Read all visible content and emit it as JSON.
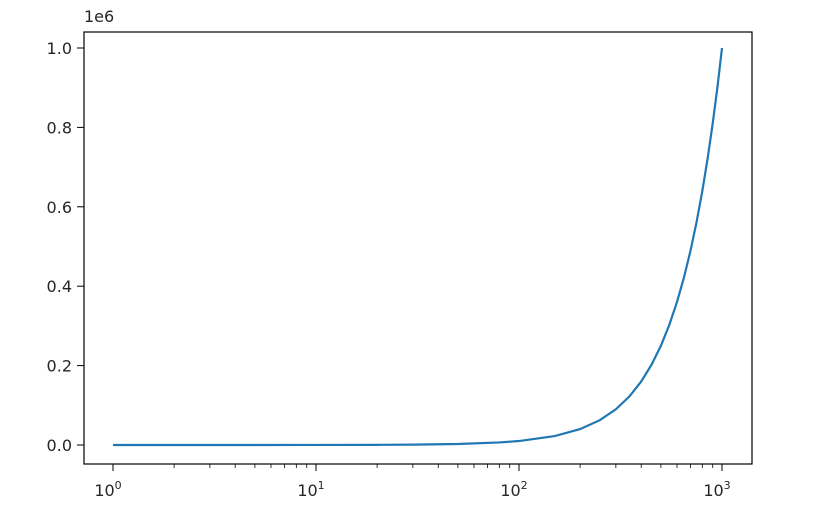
{
  "chart_data": {
    "type": "line",
    "title": "",
    "xlabel": "",
    "ylabel": "",
    "x_scale": "log",
    "x_range": [
      1,
      1000
    ],
    "y_range": [
      0,
      1000000
    ],
    "y_offset_label": "1e6",
    "x_ticks": [
      {
        "value": 1,
        "base": "10",
        "exp": "0"
      },
      {
        "value": 10,
        "base": "10",
        "exp": "1"
      },
      {
        "value": 100,
        "base": "10",
        "exp": "2"
      },
      {
        "value": 1000,
        "base": "10",
        "exp": "3"
      }
    ],
    "y_ticks": [
      {
        "value": 0,
        "label": "0.0"
      },
      {
        "value": 200000,
        "label": "0.2"
      },
      {
        "value": 400000,
        "label": "0.4"
      },
      {
        "value": 600000,
        "label": "0.6"
      },
      {
        "value": 800000,
        "label": "0.8"
      },
      {
        "value": 1000000,
        "label": "1.0"
      }
    ],
    "series": [
      {
        "color": "#1f77b4",
        "x": [
          1,
          5,
          10,
          20,
          30,
          50,
          80,
          100,
          150,
          200,
          250,
          300,
          350,
          400,
          450,
          500,
          550,
          600,
          650,
          700,
          750,
          800,
          850,
          900,
          950,
          1000
        ],
        "y": [
          1,
          25,
          100,
          400,
          900,
          2500,
          6400,
          10000,
          22500,
          40000,
          62500,
          90000,
          122500,
          160000,
          202500,
          250000,
          302500,
          360000,
          422500,
          490000,
          562500,
          640000,
          722500,
          810000,
          902500,
          1000000
        ]
      }
    ],
    "grid": false,
    "legend": false
  }
}
